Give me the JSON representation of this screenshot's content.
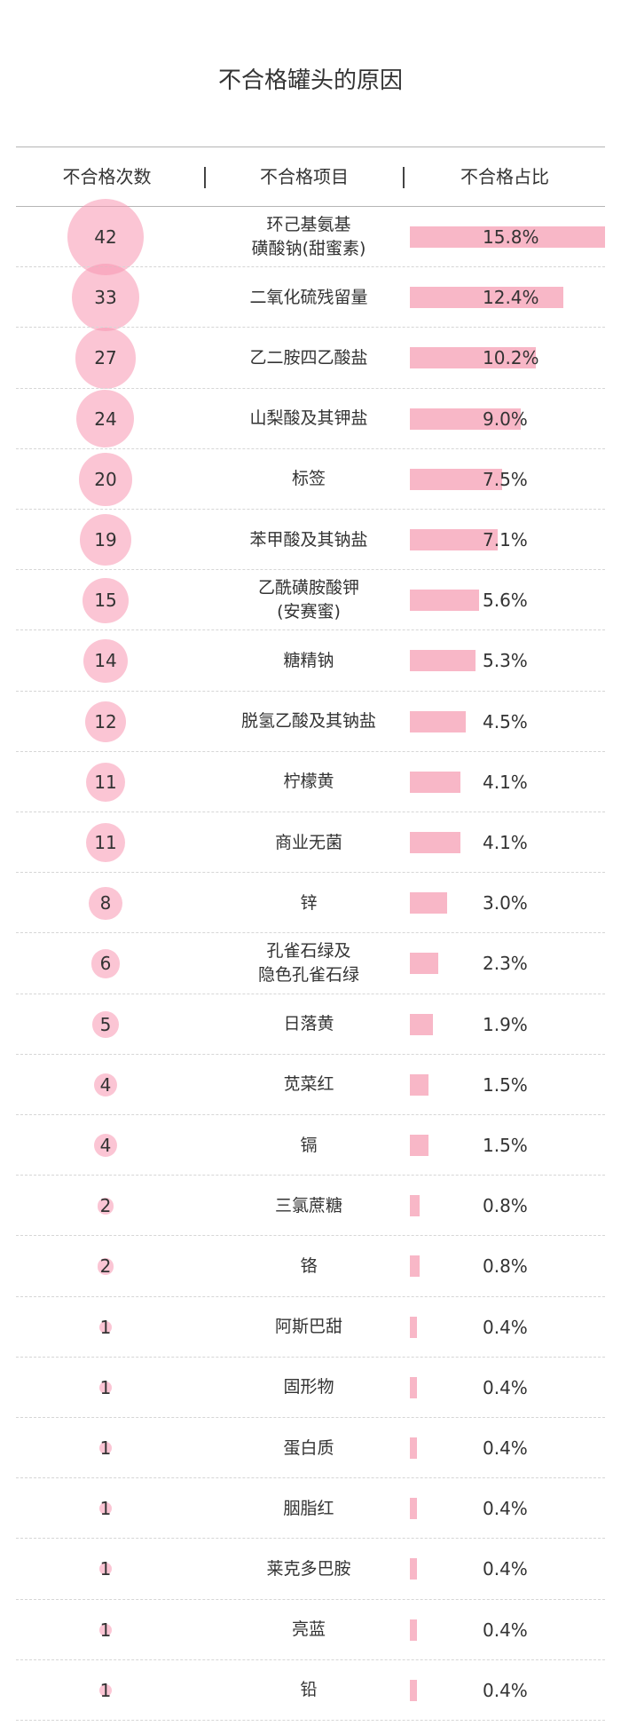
{
  "title": "不合格罐头的原因",
  "columns": {
    "count": "不合格次数",
    "item": "不合格项目",
    "share": "不合格占比"
  },
  "colors": {
    "bubble": "#f896b0",
    "bar": "#f8b7c7",
    "text": "#333333"
  },
  "chart_data": {
    "type": "table",
    "title": "不合格罐头的原因",
    "columns": [
      "不合格次数",
      "不合格项目",
      "不合格占比"
    ],
    "rows": [
      {
        "count": "42",
        "item": [
          "环己基氨基",
          "磺酸钠(甜蜜素)"
        ],
        "share": "15.8%",
        "share_value": 15.8
      },
      {
        "count": "33",
        "item": [
          "二氧化硫残留量"
        ],
        "share": "12.4%",
        "share_value": 12.4
      },
      {
        "count": "27",
        "item": [
          "乙二胺四乙酸盐"
        ],
        "share": "10.2%",
        "share_value": 10.2
      },
      {
        "count": "24",
        "item": [
          "山梨酸及其钾盐"
        ],
        "share": "9.0%",
        "share_value": 9.0
      },
      {
        "count": "20",
        "item": [
          "标签"
        ],
        "share": "7.5%",
        "share_value": 7.5
      },
      {
        "count": "19",
        "item": [
          "苯甲酸及其钠盐"
        ],
        "share": "7.1%",
        "share_value": 7.1
      },
      {
        "count": "15",
        "item": [
          "乙酰磺胺酸钾",
          "(安赛蜜)"
        ],
        "share": "5.6%",
        "share_value": 5.6
      },
      {
        "count": "14",
        "item": [
          "糖精钠"
        ],
        "share": "5.3%",
        "share_value": 5.3
      },
      {
        "count": "12",
        "item": [
          "脱氢乙酸及其钠盐"
        ],
        "share": "4.5%",
        "share_value": 4.5
      },
      {
        "count": "11",
        "item": [
          "柠檬黄"
        ],
        "share": "4.1%",
        "share_value": 4.1
      },
      {
        "count": "11",
        "item": [
          "商业无菌"
        ],
        "share": "4.1%",
        "share_value": 4.1
      },
      {
        "count": "8",
        "item": [
          "锌"
        ],
        "share": "3.0%",
        "share_value": 3.0
      },
      {
        "count": "6",
        "item": [
          "孔雀石绿及",
          "隐色孔雀石绿"
        ],
        "share": "2.3%",
        "share_value": 2.3
      },
      {
        "count": "5",
        "item": [
          "日落黄"
        ],
        "share": "1.9%",
        "share_value": 1.9
      },
      {
        "count": "4",
        "item": [
          "苋菜红"
        ],
        "share": "1.5%",
        "share_value": 1.5
      },
      {
        "count": "4",
        "item": [
          "镉"
        ],
        "share": "1.5%",
        "share_value": 1.5
      },
      {
        "count": "2",
        "item": [
          "三氯蔗糖"
        ],
        "share": "0.8%",
        "share_value": 0.8
      },
      {
        "count": "2",
        "item": [
          "铬"
        ],
        "share": "0.8%",
        "share_value": 0.8
      },
      {
        "count": "1",
        "item": [
          "阿斯巴甜"
        ],
        "share": "0.4%",
        "share_value": 0.4
      },
      {
        "count": "1",
        "item": [
          "固形物"
        ],
        "share": "0.4%",
        "share_value": 0.4
      },
      {
        "count": "1",
        "item": [
          "蛋白质"
        ],
        "share": "0.4%",
        "share_value": 0.4
      },
      {
        "count": "1",
        "item": [
          "胭脂红"
        ],
        "share": "0.4%",
        "share_value": 0.4
      },
      {
        "count": "1",
        "item": [
          "莱克多巴胺"
        ],
        "share": "0.4%",
        "share_value": 0.4
      },
      {
        "count": "1",
        "item": [
          "亮蓝"
        ],
        "share": "0.4%",
        "share_value": 0.4
      },
      {
        "count": "1",
        "item": [
          "铅"
        ],
        "share": "0.4%",
        "share_value": 0.4
      }
    ]
  }
}
